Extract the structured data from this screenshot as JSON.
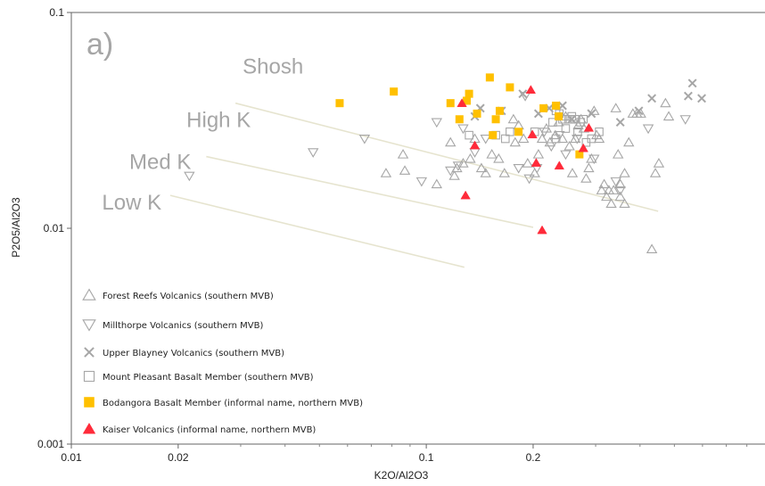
{
  "chart_data": {
    "type": "scatter",
    "panel_label": "a)",
    "xlabel": "K2O/Al2O3",
    "ylabel": "P2O5/Al2O3",
    "x_scale": "log",
    "y_scale": "log",
    "xlim": [
      0.01,
      0.9
    ],
    "ylim": [
      0.001,
      0.1
    ],
    "x_ticks": [
      {
        "value": 0.01,
        "label": "0.01"
      },
      {
        "value": 0.02,
        "label": "0.02"
      },
      {
        "value": 0.1,
        "label": "0.1"
      },
      {
        "value": 0.2,
        "label": "0.2"
      }
    ],
    "y_ticks": [
      {
        "value": 0.001,
        "label": "0.001"
      },
      {
        "value": 0.01,
        "label": "0.01"
      },
      {
        "value": 0.1,
        "label": "0.1"
      }
    ],
    "field_labels": [
      {
        "text": "Shosh",
        "x": 0.037,
        "y": 0.052
      },
      {
        "text": "High K",
        "x": 0.026,
        "y": 0.0295
      },
      {
        "text": "Med K",
        "x": 0.0178,
        "y": 0.0188
      },
      {
        "text": "Low K",
        "x": 0.0148,
        "y": 0.0122
      }
    ],
    "divider_lines": [
      {
        "x1": 0.029,
        "y1": 0.038,
        "x2": 0.45,
        "y2": 0.012
      },
      {
        "x1": 0.024,
        "y1": 0.0215,
        "x2": 0.2,
        "y2": 0.0101
      },
      {
        "x1": 0.019,
        "y1": 0.0142,
        "x2": 0.128,
        "y2": 0.0066
      }
    ],
    "series": [
      {
        "name": "Forest Reefs Volcanics (southern MVB)",
        "marker": "triangle-up-open",
        "color": "#a6a6a6",
        "points": [
          [
            0.077,
            0.018
          ],
          [
            0.086,
            0.022
          ],
          [
            0.087,
            0.0185
          ],
          [
            0.107,
            0.016
          ],
          [
            0.117,
            0.025
          ],
          [
            0.12,
            0.0175
          ],
          [
            0.122,
            0.019
          ],
          [
            0.127,
            0.02
          ],
          [
            0.133,
            0.021
          ],
          [
            0.137,
            0.026
          ],
          [
            0.143,
            0.019
          ],
          [
            0.147,
            0.018
          ],
          [
            0.153,
            0.022
          ],
          [
            0.16,
            0.021
          ],
          [
            0.166,
            0.018
          ],
          [
            0.176,
            0.032
          ],
          [
            0.178,
            0.025
          ],
          [
            0.182,
            0.03
          ],
          [
            0.188,
            0.026
          ],
          [
            0.193,
            0.02
          ],
          [
            0.202,
            0.018
          ],
          [
            0.207,
            0.022
          ],
          [
            0.212,
            0.026
          ],
          [
            0.218,
            0.029
          ],
          [
            0.223,
            0.025
          ],
          [
            0.231,
            0.027
          ],
          [
            0.236,
            0.031
          ],
          [
            0.242,
            0.026
          ],
          [
            0.247,
            0.033
          ],
          [
            0.253,
            0.024
          ],
          [
            0.258,
            0.018
          ],
          [
            0.263,
            0.026
          ],
          [
            0.268,
            0.03
          ],
          [
            0.273,
            0.032
          ],
          [
            0.278,
            0.029
          ],
          [
            0.282,
            0.017
          ],
          [
            0.287,
            0.019
          ],
          [
            0.292,
            0.021
          ],
          [
            0.297,
            0.035
          ],
          [
            0.302,
            0.027
          ],
          [
            0.307,
            0.026
          ],
          [
            0.312,
            0.015
          ],
          [
            0.317,
            0.016
          ],
          [
            0.322,
            0.014
          ],
          [
            0.327,
            0.015
          ],
          [
            0.332,
            0.013
          ],
          [
            0.337,
            0.015
          ],
          [
            0.342,
            0.036
          ],
          [
            0.347,
            0.022
          ],
          [
            0.352,
            0.016
          ],
          [
            0.362,
            0.018
          ],
          [
            0.372,
            0.025
          ],
          [
            0.382,
            0.034
          ],
          [
            0.392,
            0.034
          ],
          [
            0.402,
            0.034
          ],
          [
            0.432,
            0.008
          ],
          [
            0.442,
            0.018
          ],
          [
            0.452,
            0.02
          ],
          [
            0.472,
            0.038
          ],
          [
            0.482,
            0.033
          ],
          [
            0.362,
            0.013
          ],
          [
            0.352,
            0.014
          ]
        ]
      },
      {
        "name": "Millthorpe Volcanics (southern MVB)",
        "marker": "triangle-down-open",
        "color": "#a6a6a6",
        "points": [
          [
            0.0215,
            0.0175
          ],
          [
            0.048,
            0.0225
          ],
          [
            0.067,
            0.026
          ],
          [
            0.097,
            0.0165
          ],
          [
            0.107,
            0.031
          ],
          [
            0.117,
            0.0185
          ],
          [
            0.123,
            0.0195
          ],
          [
            0.127,
            0.029
          ],
          [
            0.137,
            0.0225
          ],
          [
            0.147,
            0.026
          ],
          [
            0.182,
            0.019
          ],
          [
            0.19,
            0.041
          ],
          [
            0.195,
            0.017
          ],
          [
            0.205,
            0.019
          ],
          [
            0.215,
            0.028
          ],
          [
            0.225,
            0.024
          ],
          [
            0.237,
            0.027
          ],
          [
            0.247,
            0.022
          ],
          [
            0.266,
            0.026
          ],
          [
            0.297,
            0.021
          ],
          [
            0.342,
            0.0165
          ],
          [
            0.352,
            0.015
          ],
          [
            0.422,
            0.029
          ],
          [
            0.537,
            0.032
          ]
        ]
      },
      {
        "name": "Upper Blayney Volcanics (southern MVB)",
        "marker": "x",
        "color": "#a6a6a6",
        "points": [
          [
            0.137,
            0.033
          ],
          [
            0.142,
            0.036
          ],
          [
            0.163,
            0.035
          ],
          [
            0.187,
            0.042
          ],
          [
            0.207,
            0.034
          ],
          [
            0.222,
            0.036
          ],
          [
            0.242,
            0.037
          ],
          [
            0.257,
            0.032
          ],
          [
            0.292,
            0.034
          ],
          [
            0.352,
            0.031
          ],
          [
            0.397,
            0.035
          ],
          [
            0.432,
            0.04
          ],
          [
            0.547,
            0.041
          ],
          [
            0.562,
            0.047
          ],
          [
            0.597,
            0.04
          ]
        ]
      },
      {
        "name": "Mount Pleasant Basalt Member (southern MVB)",
        "marker": "square-open",
        "color": "#a6a6a6",
        "points": [
          [
            0.132,
            0.027
          ],
          [
            0.157,
            0.027
          ],
          [
            0.167,
            0.026
          ],
          [
            0.172,
            0.028
          ],
          [
            0.202,
            0.028
          ],
          [
            0.227,
            0.031
          ],
          [
            0.232,
            0.026
          ],
          [
            0.237,
            0.034
          ],
          [
            0.242,
            0.032
          ],
          [
            0.247,
            0.029
          ],
          [
            0.252,
            0.032
          ],
          [
            0.257,
            0.033
          ],
          [
            0.267,
            0.028
          ],
          [
            0.272,
            0.031
          ],
          [
            0.277,
            0.032
          ],
          [
            0.282,
            0.025
          ],
          [
            0.292,
            0.026
          ],
          [
            0.307,
            0.028
          ],
          [
            0.232,
            0.035
          ],
          [
            0.262,
            0.032
          ]
        ]
      },
      {
        "name": "Bodangora Basalt Member (informal name, northern MVB)",
        "marker": "square-filled",
        "color": "#ffc000",
        "points": [
          [
            0.057,
            0.038
          ],
          [
            0.081,
            0.043
          ],
          [
            0.117,
            0.038
          ],
          [
            0.124,
            0.032
          ],
          [
            0.13,
            0.039
          ],
          [
            0.132,
            0.042
          ],
          [
            0.139,
            0.034
          ],
          [
            0.151,
            0.05
          ],
          [
            0.154,
            0.027
          ],
          [
            0.157,
            0.032
          ],
          [
            0.161,
            0.035
          ],
          [
            0.172,
            0.045
          ],
          [
            0.182,
            0.028
          ],
          [
            0.214,
            0.036
          ],
          [
            0.232,
            0.037
          ],
          [
            0.236,
            0.033
          ],
          [
            0.27,
            0.022
          ]
        ]
      },
      {
        "name": "Kaiser Volcanics (informal name, northern MVB)",
        "marker": "triangle-up-filled",
        "color": "#ff2b3a",
        "points": [
          [
            0.126,
            0.038
          ],
          [
            0.129,
            0.0142
          ],
          [
            0.137,
            0.0242
          ],
          [
            0.197,
            0.0438
          ],
          [
            0.199,
            0.0272
          ],
          [
            0.204,
            0.0201
          ],
          [
            0.212,
            0.0098
          ],
          [
            0.237,
            0.0195
          ],
          [
            0.277,
            0.0235
          ],
          [
            0.287,
            0.0292
          ]
        ]
      }
    ]
  }
}
